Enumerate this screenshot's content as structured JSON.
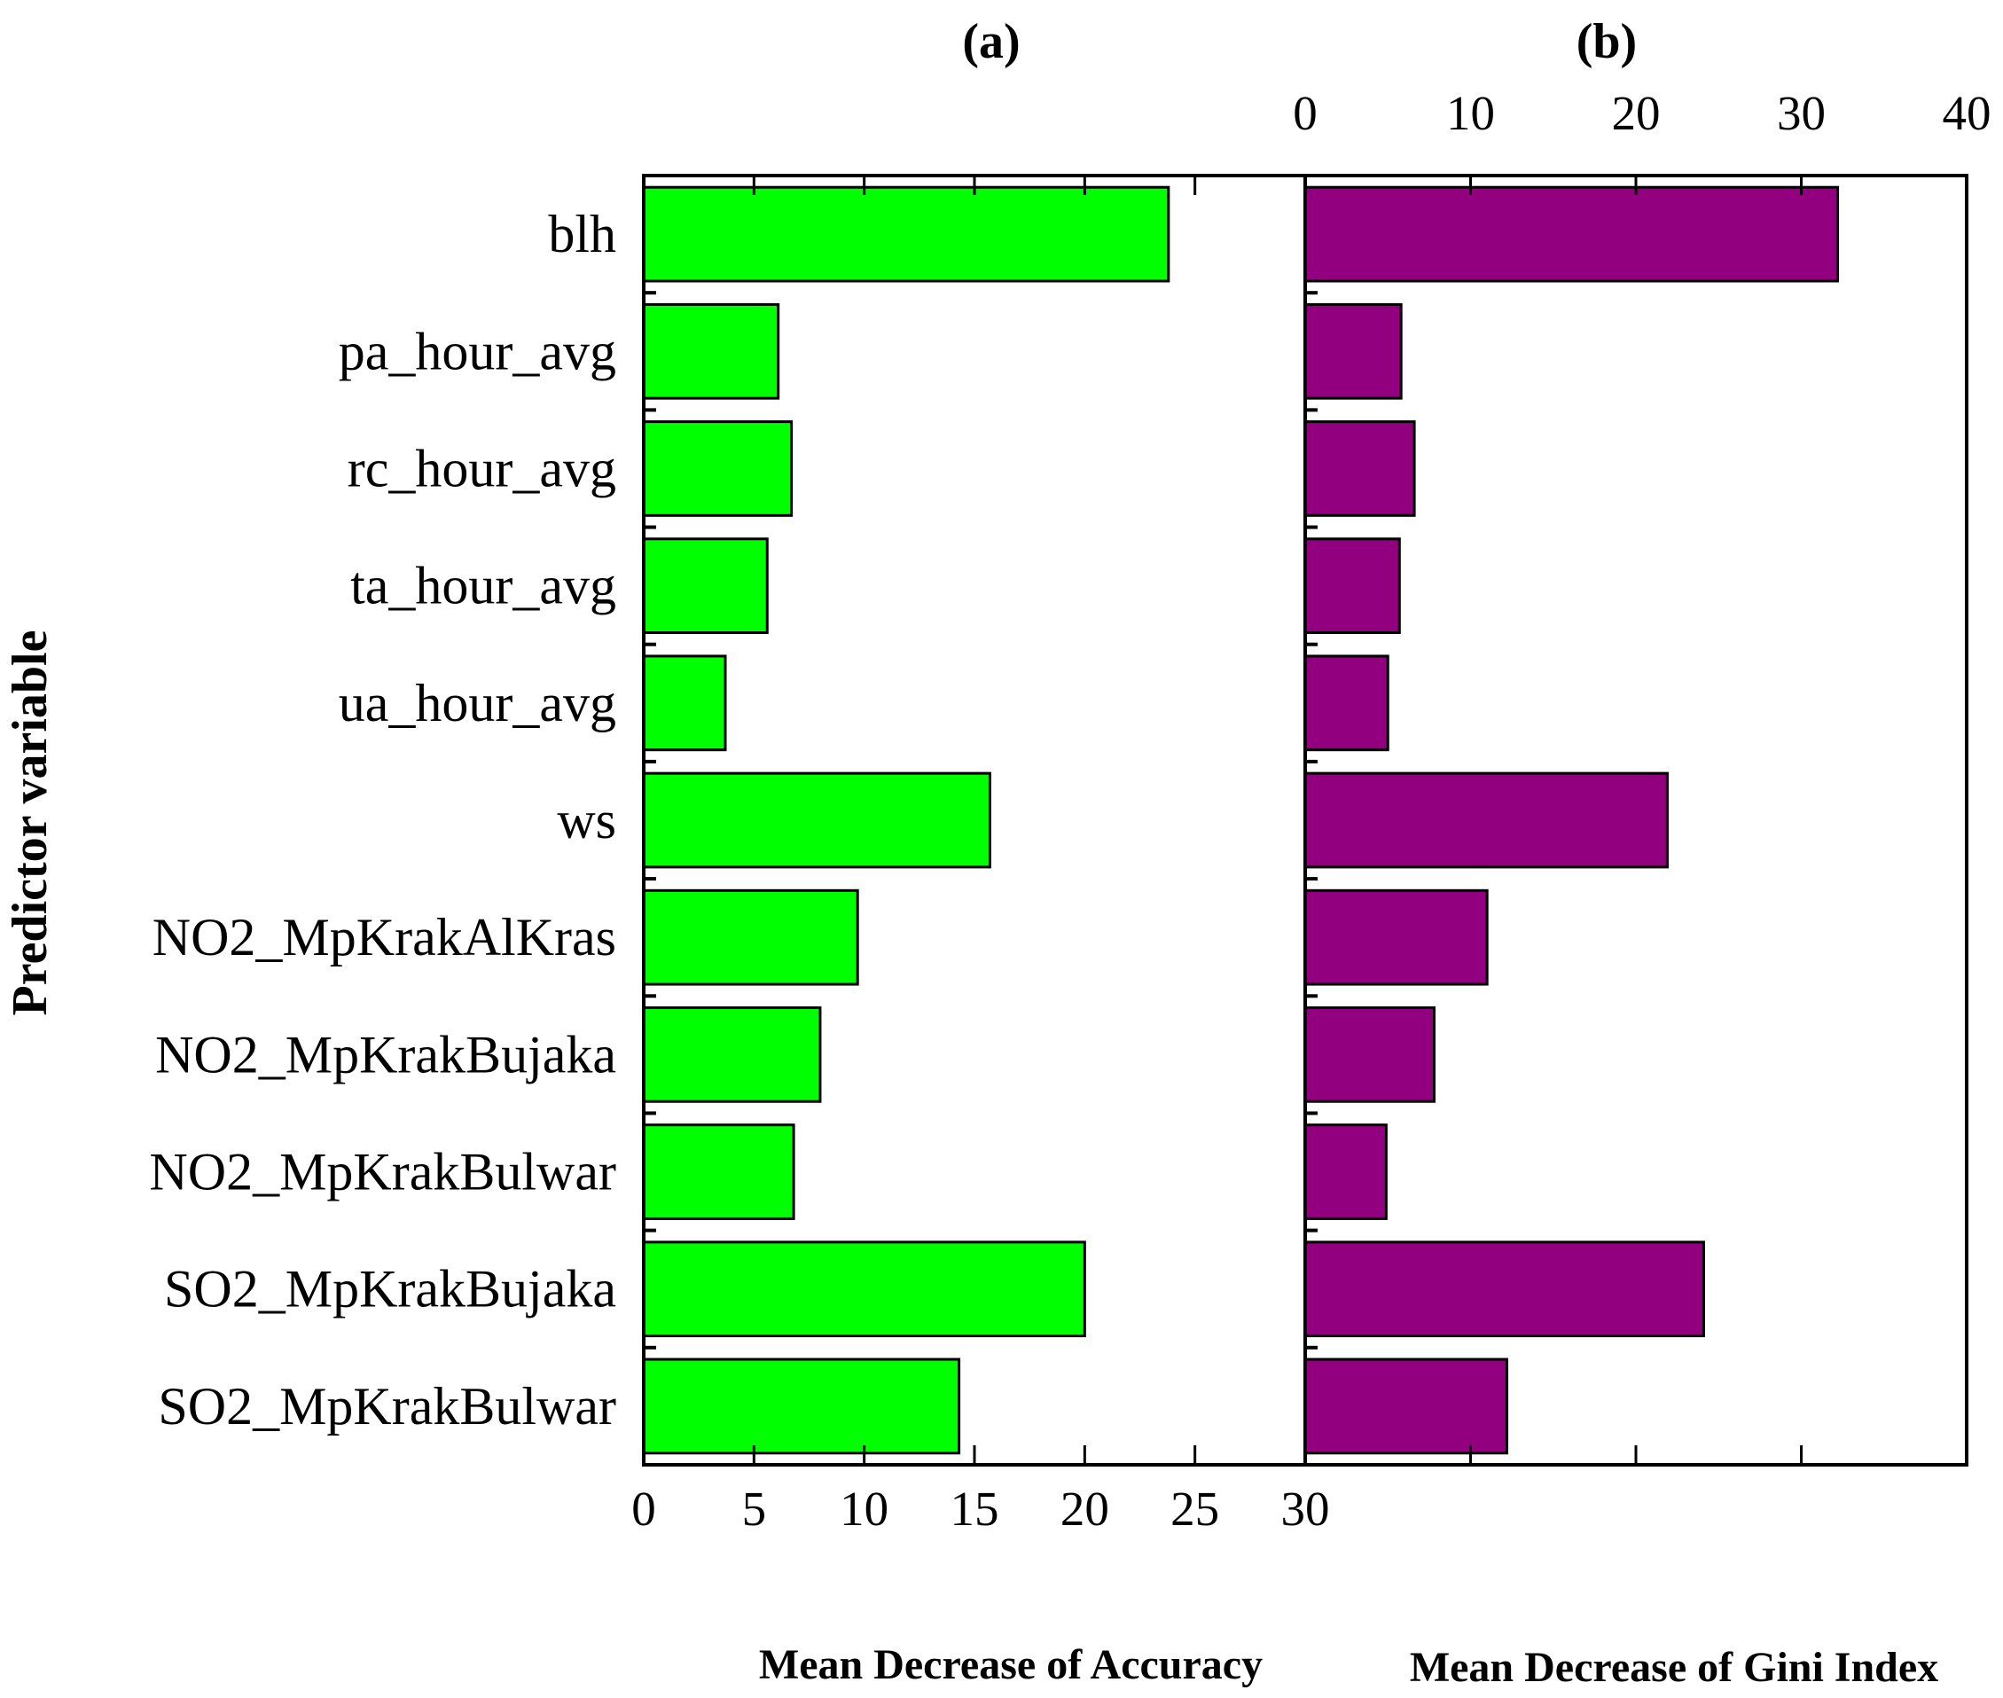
{
  "chart_data": {
    "type": "bar",
    "orientation": "horizontal",
    "ylabel": "Predictor variable",
    "categories": [
      "blh",
      "pa_hour_avg",
      "rc_hour_avg",
      "ta_hour_avg",
      "ua_hour_avg",
      "ws",
      "NO2_MpKrakAlKras",
      "NO2_MpKrakBujaka",
      "NO2_MpKrakBulwar",
      "SO2_MpKrakBujaka",
      "SO2_MpKrakBulwar"
    ],
    "panels": [
      {
        "panel_label": "(a)",
        "xlabel": "Mean Decrease of Accuracy",
        "xlim": [
          0,
          30
        ],
        "xticks": [
          "0",
          "5",
          "10",
          "15",
          "20",
          "25",
          "30"
        ],
        "tick_position": "bottom",
        "color": "#00ff00",
        "values": [
          23.8,
          6.1,
          6.7,
          5.6,
          3.7,
          15.7,
          9.7,
          8.0,
          6.8,
          20.0,
          14.3
        ]
      },
      {
        "panel_label": "(b)",
        "xlabel": "Mean Decrease of Gini Index",
        "xlim": [
          0,
          40
        ],
        "xticks": [
          "0",
          "10",
          "20",
          "30",
          "40"
        ],
        "tick_position": "top",
        "color": "#93007f",
        "values": [
          32.2,
          5.8,
          6.6,
          5.7,
          5.0,
          21.9,
          11.0,
          7.8,
          4.9,
          24.1,
          12.2
        ]
      }
    ]
  }
}
